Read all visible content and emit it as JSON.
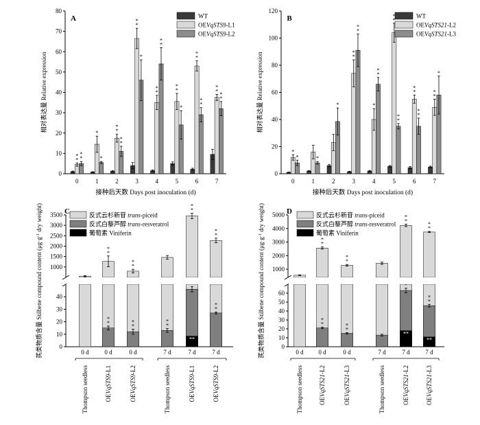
{
  "chart_data": [
    {
      "type": "bar",
      "panel": "A",
      "categories": [
        "0",
        "1",
        "2",
        "3",
        "4",
        "5",
        "6",
        "7"
      ],
      "ylim": [
        0,
        80
      ],
      "yticks": [
        0,
        10,
        20,
        30,
        40,
        50,
        60,
        70,
        80
      ],
      "ylabel": "相对表达量 Relative expression",
      "xlabel": "接种后天数 Days post inoculation (d)",
      "legend_position": "top-right",
      "series": [
        {
          "name": "WT",
          "color": "#3a3a3a",
          "values": [
            1.0,
            0.8,
            1.2,
            4.0,
            1.5,
            5.0,
            2.2,
            9.5
          ],
          "errors": [
            0.3,
            0.2,
            0.3,
            1.5,
            0.3,
            0.8,
            0.5,
            2.5
          ],
          "sig": [
            "",
            "",
            "",
            "",
            "",
            "",
            "",
            ""
          ]
        },
        {
          "name_parts": [
            "OE",
            {
              "i": "VqSTS9"
            },
            "-L1"
          ],
          "color": "#d9d9d9",
          "values": [
            4.5,
            14.5,
            17.5,
            66.5,
            35.0,
            35.5,
            53.0,
            37.5
          ],
          "errors": [
            0.8,
            4.0,
            2.0,
            5.0,
            3.5,
            4.0,
            2.5,
            1.5
          ],
          "sig": [
            "**",
            "*",
            "**",
            "**",
            "**",
            "**",
            "**",
            "**"
          ]
        },
        {
          "name_parts": [
            "OE",
            {
              "i": "VqSTS9"
            },
            "-L2"
          ],
          "color": "#8c8c8c",
          "values": [
            5.0,
            5.5,
            11.0,
            46.0,
            54.0,
            24.0,
            29.0,
            32.0
          ],
          "errors": [
            1.0,
            0.5,
            2.5,
            10.0,
            8.0,
            7.0,
            3.5,
            3.5
          ],
          "sig": [
            "**",
            "*",
            "**",
            "*",
            "**",
            "*",
            "**",
            "**"
          ]
        }
      ]
    },
    {
      "type": "bar",
      "panel": "B",
      "categories": [
        "0",
        "1",
        "2",
        "3",
        "4",
        "5",
        "6",
        "7"
      ],
      "ylim": [
        0,
        120
      ],
      "yticks": [
        0,
        20,
        40,
        60,
        80,
        100,
        120
      ],
      "ylabel": "相对表达量 Relative expression",
      "xlabel": "接种后天数 Days post inoculation (d)",
      "legend_position": "top-right",
      "series": [
        {
          "name": "WT",
          "color": "#3a3a3a",
          "values": [
            1.0,
            2.0,
            6.0,
            1.5,
            2.0,
            5.5,
            4.5,
            5.0
          ],
          "errors": [
            0.2,
            0.3,
            0.8,
            0.3,
            0.4,
            0.6,
            0.8,
            0.6
          ],
          "sig": [
            "",
            "",
            "",
            "",
            "",
            "",
            "",
            ""
          ]
        },
        {
          "name_parts": [
            "OE",
            {
              "i": "VqSTS21"
            },
            "-L2"
          ],
          "color": "#d9d9d9",
          "values": [
            12.0,
            16.0,
            23.0,
            74.0,
            40.0,
            104.0,
            55.0,
            49.0
          ],
          "errors": [
            2.0,
            5.0,
            6.0,
            10.0,
            8.0,
            7.0,
            3.0,
            6.0
          ],
          "sig": [
            "*",
            "",
            "",
            "**",
            "*",
            "**",
            "**",
            "**"
          ]
        },
        {
          "name_parts": [
            "OE",
            {
              "i": "VqSTS21"
            },
            "-L3"
          ],
          "color": "#8c8c8c",
          "values": [
            8.0,
            8.0,
            38.5,
            91.0,
            66.0,
            35.0,
            35.0,
            58.0
          ],
          "errors": [
            2.0,
            1.0,
            10.0,
            12.0,
            5.0,
            2.0,
            6.0,
            14.0
          ],
          "sig": [
            "*",
            "*",
            "*",
            "**",
            "**",
            "**",
            "**",
            "*"
          ]
        }
      ]
    },
    {
      "type": "stacked_bar_broken_axis",
      "panel": "C",
      "ylabel": "芪类物质含量 Stilbene compound content (μg·g⁻¹ dry weight)",
      "ylabel_parts": [
        "芪类物质含量 Stilbene compound content (μg·g",
        {
          "sup": "-1"
        },
        " dry weight)"
      ],
      "lower_ylim": [
        0,
        50
      ],
      "lower_yticks": [
        0,
        10,
        20,
        30,
        40
      ],
      "upper_ylim": [
        500,
        3500
      ],
      "upper_yticks": [
        1000,
        1500,
        2000,
        2500,
        3000,
        3500
      ],
      "legend_position": "top-left",
      "legend": [
        {
          "parts": [
            "反式云杉新苷 ",
            {
              "i": "trans"
            },
            "-piceid"
          ],
          "color": "#d9d9d9"
        },
        {
          "parts": [
            "反式白藜芦醇 ",
            {
              "i": "trans"
            },
            "-resveratrol"
          ],
          "color": "#7f7f7f"
        },
        {
          "parts": [
            "葡萄素 Viniferin"
          ],
          "color": "#000000"
        }
      ],
      "bars": [
        {
          "day": "0 d",
          "label_parts": [
            "Thompson seedless"
          ],
          "viniferin": 0,
          "resveratrol": 0,
          "total": 560,
          "total_err": 30,
          "res_err": 0,
          "vin_err": 0,
          "sig_total": "",
          "sig_res": "",
          "sig_vin": ""
        },
        {
          "day": "0 d",
          "label_parts": [
            "OE",
            {
              "i": "VqSTS9"
            },
            "-L1"
          ],
          "viniferin": 0,
          "resveratrol": 15,
          "total": 1270,
          "total_err": 260,
          "res_err": 1.5,
          "vin_err": 0,
          "sig_total": "**",
          "sig_res": "**",
          "sig_vin": ""
        },
        {
          "day": "0 d",
          "label_parts": [
            "OE",
            {
              "i": "VqSTS9"
            },
            "-L2"
          ],
          "viniferin": 0,
          "resveratrol": 12,
          "total": 800,
          "total_err": 90,
          "res_err": 2,
          "vin_err": 0,
          "sig_total": "**",
          "sig_res": "**",
          "sig_vin": ""
        },
        {
          "day": "7 d",
          "label_parts": [
            "Thompson seedless"
          ],
          "viniferin": 0,
          "resveratrol": 13,
          "total": 1460,
          "total_err": 90,
          "res_err": 1.5,
          "vin_err": 0,
          "sig_total": "",
          "sig_res": "**",
          "sig_vin": ""
        },
        {
          "day": "7 d",
          "label_parts": [
            "OE",
            {
              "i": "VqSTS9"
            },
            "-L1"
          ],
          "viniferin": 8.5,
          "resveratrol": 46,
          "total": 3450,
          "total_err": 130,
          "res_err": 2,
          "vin_err": 0.5,
          "sig_total": "**",
          "sig_res": "**",
          "sig_vin": "**"
        },
        {
          "day": "7 d",
          "label_parts": [
            "OE",
            {
              "i": "VqSTS9"
            },
            "-L2"
          ],
          "viniferin": 0,
          "resveratrol": 27,
          "total": 2270,
          "total_err": 110,
          "res_err": 0.8,
          "vin_err": 0,
          "sig_total": "**",
          "sig_res": "**",
          "sig_vin": ""
        }
      ]
    },
    {
      "type": "stacked_bar_broken_axis",
      "panel": "D",
      "ylabel": "芪类物质含量 Stilbene compound content (μg·g⁻¹ dry weight)",
      "ylabel_parts": [
        "芪类物质含量 Stilbene compound content (μg·g",
        {
          "sup": "-1"
        },
        " dry weight)"
      ],
      "lower_ylim": [
        0,
        70
      ],
      "lower_yticks": [
        0,
        10,
        20,
        30,
        40,
        50,
        60
      ],
      "upper_ylim": [
        400,
        5000
      ],
      "upper_yticks": [
        1000,
        2000,
        3000,
        4000,
        5000
      ],
      "legend_position": "top-right",
      "legend": [
        {
          "parts": [
            "反式云杉新苷 ",
            {
              "i": "trans"
            },
            "-piceid"
          ],
          "color": "#d9d9d9"
        },
        {
          "parts": [
            "反式白藜芦醇 ",
            {
              "i": "trans"
            },
            "-resveratrol"
          ],
          "color": "#7f7f7f"
        },
        {
          "parts": [
            "葡萄素 Viniferin"
          ],
          "color": "#000000"
        }
      ],
      "bars": [
        {
          "day": "0 d",
          "label_parts": [
            "Thompson seedless"
          ],
          "viniferin": 0,
          "resveratrol": 0,
          "total": 560,
          "total_err": 25,
          "res_err": 0,
          "vin_err": 0,
          "sig_total": "",
          "sig_res": "",
          "sig_vin": ""
        },
        {
          "day": "0 d",
          "label_parts": [
            "OE",
            {
              "i": "VqSTS21"
            },
            "-L2"
          ],
          "viniferin": 0,
          "resveratrol": 21,
          "total": 2560,
          "total_err": 80,
          "res_err": 0.8,
          "vin_err": 0,
          "sig_total": "**",
          "sig_res": "**",
          "sig_vin": ""
        },
        {
          "day": "0 d",
          "label_parts": [
            "OE",
            {
              "i": "VqSTS21"
            },
            "-L3"
          ],
          "viniferin": 0,
          "resveratrol": 15,
          "total": 1290,
          "total_err": 60,
          "res_err": 0.8,
          "vin_err": 0,
          "sig_total": "**",
          "sig_res": "**",
          "sig_vin": ""
        },
        {
          "day": "7 d",
          "label_parts": [
            "Thompson seedless"
          ],
          "viniferin": 0,
          "resveratrol": 13,
          "total": 1440,
          "total_err": 80,
          "res_err": 1.0,
          "vin_err": 0,
          "sig_total": "",
          "sig_res": "",
          "sig_vin": ""
        },
        {
          "day": "7 d",
          "label_parts": [
            "OE",
            {
              "i": "VqSTS21"
            },
            "-L2"
          ],
          "viniferin": 18,
          "resveratrol": 63,
          "total": 4230,
          "total_err": 90,
          "res_err": 2.5,
          "vin_err": 1.0,
          "sig_total": "**",
          "sig_res": "**",
          "sig_vin": "**"
        },
        {
          "day": "7 d",
          "label_parts": [
            "OE",
            {
              "i": "VqSTS21"
            },
            "-L3"
          ],
          "viniferin": 11,
          "resveratrol": 46,
          "total": 3740,
          "total_err": 40,
          "res_err": 1.5,
          "vin_err": 0.8,
          "sig_total": "**",
          "sig_res": "**",
          "sig_vin": "**"
        }
      ]
    }
  ]
}
